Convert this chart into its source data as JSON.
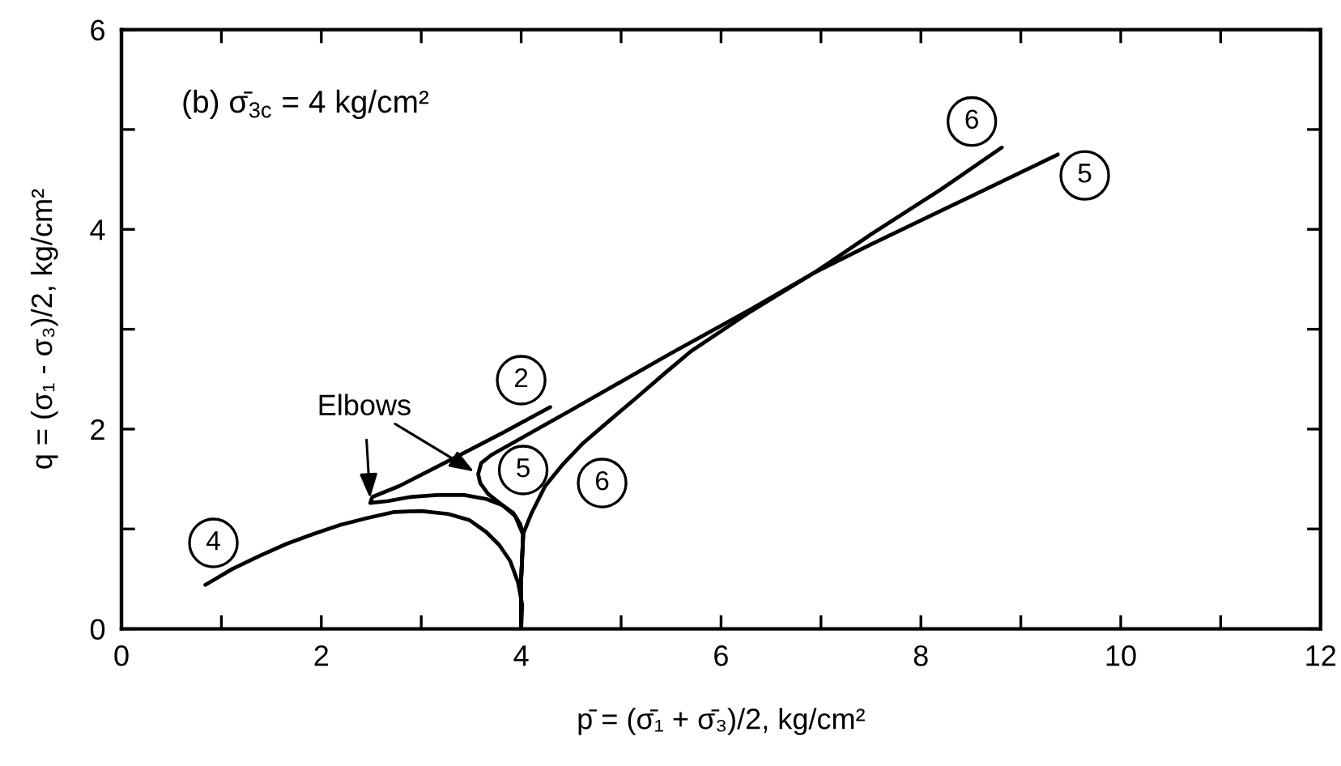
{
  "chart_data": {
    "type": "line",
    "title": "(b) σ̄$_{3c}$ = 4 kg/cm²",
    "xlabel": "p̄ = (σ̄₁ + σ̄₃)/2, kg/cm²",
    "ylabel": "q = (σ₁ - σ₃)/2, kg/cm²",
    "xlim": [
      0,
      12
    ],
    "xticks": [
      0,
      {
        "value": 1,
        "label": null
      },
      2,
      {
        "value": 3,
        "label": null
      },
      4,
      {
        "value": 5,
        "label": null
      },
      6,
      {
        "value": 7,
        "label": null
      },
      8,
      {
        "value": 9,
        "label": null
      },
      10,
      {
        "value": 11,
        "label": null
      },
      12
    ],
    "ylim": [
      0,
      6
    ],
    "yticks": [
      0,
      {
        "value": 1,
        "label": null
      },
      2,
      {
        "value": 3,
        "label": null
      },
      4,
      {
        "value": 5,
        "label": null
      },
      6
    ],
    "series": [
      {
        "color": "#000000",
        "x": [
          4.0,
          4.01,
          3.97,
          3.89,
          3.78,
          3.65,
          3.48,
          3.27,
          3.0,
          2.73,
          2.46,
          2.19,
          1.92,
          1.65,
          1.38,
          1.11,
          0.84
        ],
        "values": [
          0,
          0.24,
          0.46,
          0.68,
          0.84,
          0.97,
          1.09,
          1.15,
          1.18,
          1.17,
          1.11,
          1.04,
          0.95,
          0.85,
          0.73,
          0.6,
          0.44
        ]
      },
      {
        "color": "#000000",
        "x": [
          4.0,
          4.0,
          4.02,
          3.99,
          3.92,
          3.81,
          3.65,
          3.43,
          3.16,
          2.89,
          2.67,
          2.49,
          2.51,
          2.78,
          3.27,
          3.81,
          4.29
        ],
        "values": [
          0,
          0.5,
          0.94,
          1.05,
          1.16,
          1.24,
          1.3,
          1.34,
          1.34,
          1.32,
          1.28,
          1.26,
          1.32,
          1.43,
          1.68,
          1.96,
          2.22
        ]
      },
      {
        "color": "#000000",
        "x": [
          4.0,
          4.0,
          4.02,
          3.94,
          3.81,
          3.67,
          3.59,
          3.57,
          3.6,
          3.7,
          4.5,
          5.5,
          6.3,
          6.94,
          7.5,
          8.5,
          9.37
        ],
        "values": [
          0,
          0.5,
          0.94,
          1.13,
          1.24,
          1.35,
          1.46,
          1.55,
          1.66,
          1.74,
          2.19,
          2.76,
          3.2,
          3.57,
          3.85,
          4.33,
          4.75
        ]
      },
      {
        "color": "#000000",
        "x": [
          4.0,
          4.0,
          4.02,
          4.1,
          4.24,
          4.42,
          4.62,
          4.9,
          5.16,
          5.45,
          5.7,
          6.3,
          6.94,
          7.5,
          8.2,
          8.81
        ],
        "values": [
          0,
          0.5,
          0.95,
          1.15,
          1.43,
          1.65,
          1.86,
          2.1,
          2.32,
          2.57,
          2.78,
          3.18,
          3.57,
          3.95,
          4.4,
          4.82
        ]
      }
    ],
    "annotations": [
      {
        "text": "Elbows",
        "x": 2.49,
        "y": 1.26
      },
      {
        "text": "4",
        "x": 0.92,
        "y": 0.86
      },
      {
        "text": "2",
        "x": 4.0,
        "y": 2.49
      },
      {
        "text": "5",
        "x": 4.02,
        "y": 1.59
      },
      {
        "text": "6",
        "x": 4.81,
        "y": 1.46
      },
      {
        "text": "6",
        "x": 8.51,
        "y": 5.08
      },
      {
        "text": "5",
        "x": 9.64,
        "y": 4.54
      }
    ]
  }
}
